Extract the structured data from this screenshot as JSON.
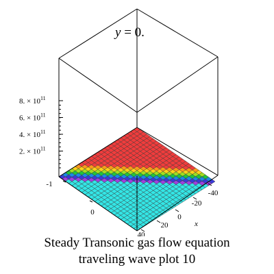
{
  "chart_data": {
    "type": "surface3d",
    "title_var": "y",
    "title_eq": " = 0.",
    "xlabel": "x",
    "x_ticks": [
      "-40",
      "-20",
      "0",
      "20",
      "40"
    ],
    "y_ticks": [
      "-1",
      "0"
    ],
    "z_ticks": [
      {
        "mantissa": "2. × 10",
        "exp": "11"
      },
      {
        "mantissa": "4. × 10",
        "exp": "11"
      },
      {
        "mantissa": "6. × 10",
        "exp": "11"
      },
      {
        "mantissa": "8. × 10",
        "exp": "11"
      }
    ],
    "surface_colors": {
      "low": "#f03c3c",
      "high": "#33e6e6",
      "transition": [
        "#ff9a1a",
        "#ffd21a",
        "#a0e020",
        "#22c43c",
        "#1a8ae6",
        "#3a3ad8",
        "#a040e0",
        "#ff70c0"
      ]
    },
    "grid": true
  },
  "caption": {
    "line1": "Steady Transonic gas flow equation",
    "line2": "traveling wave plot 10"
  }
}
